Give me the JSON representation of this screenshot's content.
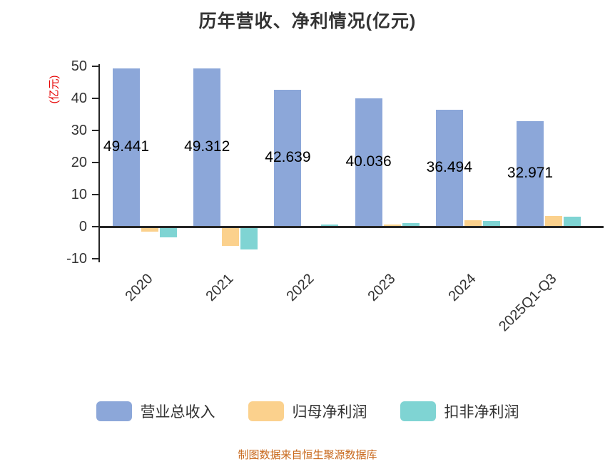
{
  "title": "历年营收、净利情况(亿元)",
  "footer": {
    "text": "制图数据来自恒生聚源数据库",
    "color": "#C8681C"
  },
  "chart_data": {
    "type": "bar",
    "title": "历年营收、净利情况(亿元)",
    "ylabel": "(亿元)",
    "ylabel_color": "#E60000",
    "axis_color": "#262626",
    "categories": [
      "2020",
      "2021",
      "2022",
      "2023",
      "2024",
      "2025Q1-Q3"
    ],
    "series": [
      {
        "name": "营业总收入",
        "color": "#8CA7D9",
        "values": [
          49.441,
          49.312,
          42.639,
          40.036,
          36.494,
          32.971
        ],
        "labels": [
          "49.441",
          "49.312",
          "42.639",
          "40.036",
          "36.494",
          "32.971"
        ]
      },
      {
        "name": "归母净利润",
        "color": "#FBD18D",
        "values": [
          -1.5,
          -5.9,
          0.3,
          0.6,
          2.0,
          3.3
        ]
      },
      {
        "name": "扣非净利润",
        "color": "#7FD4D3",
        "values": [
          -3.3,
          -7.0,
          0.6,
          1.1,
          1.8,
          3.2
        ]
      }
    ],
    "yticks": [
      50,
      40,
      30,
      20,
      10,
      0,
      -10
    ],
    "ylim": [
      -10,
      50
    ],
    "grid": false,
    "legend_position": "bottom"
  }
}
